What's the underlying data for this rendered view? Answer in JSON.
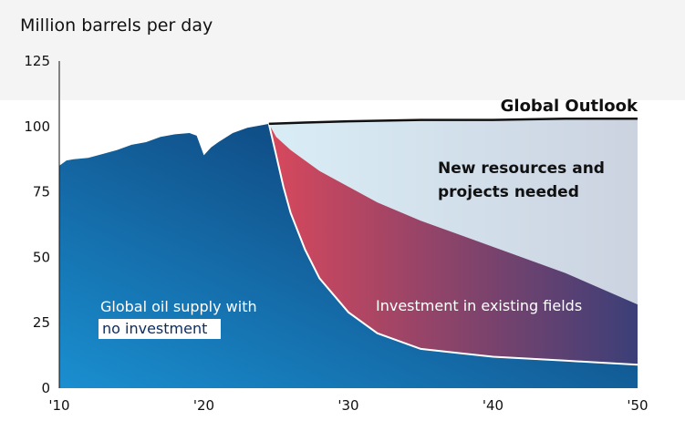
{
  "colors": {
    "band": "#f4f4f4",
    "outlook_line": "#111111",
    "base_dark": "#0b2e63",
    "base_light": "#1a8fd0",
    "existing_red": "#d8485c",
    "existing_purple": "#3b3f78",
    "new_light": "#d9edf6",
    "new_grey": "#ccd3e0",
    "label_white": "#ffffff",
    "label_dark": "#111111"
  },
  "chart_data": {
    "type": "area",
    "title": "",
    "ylabel": "Million barrels per day",
    "xlabel": "",
    "xlim": [
      2010,
      2050
    ],
    "ylim": [
      0,
      125
    ],
    "y_ticks": [
      0,
      25,
      50,
      75,
      100,
      125
    ],
    "x_ticks": [
      {
        "value": 2010,
        "label": "'10"
      },
      {
        "value": 2020,
        "label": "'20"
      },
      {
        "value": 2030,
        "label": "'30"
      },
      {
        "value": 2040,
        "label": "'40"
      },
      {
        "value": 2050,
        "label": "'50"
      }
    ],
    "series": [
      {
        "name": "Global Outlook",
        "x": [
          2024.5,
          2027,
          2030,
          2035,
          2040,
          2045,
          2050
        ],
        "values": [
          101,
          101.5,
          102,
          102.5,
          102.5,
          103,
          103
        ]
      },
      {
        "name": "Global oil supply with no investment",
        "x": [
          2010,
          2010.5,
          2011,
          2012,
          2013,
          2014,
          2015,
          2016,
          2017,
          2018,
          2019,
          2019.5,
          2020,
          2020.5,
          2021,
          2022,
          2023,
          2024,
          2024.5,
          2025,
          2025.5,
          2026,
          2027,
          2028,
          2030,
          2032,
          2035,
          2040,
          2045,
          2050
        ],
        "values": [
          85,
          87,
          87.5,
          88,
          89.5,
          91,
          93,
          94,
          96,
          97,
          97.5,
          96.5,
          89,
          92,
          94,
          97.5,
          99.5,
          100.5,
          101,
          89,
          77,
          67,
          53,
          42,
          29,
          21,
          15,
          12,
          10.5,
          9
        ]
      },
      {
        "name": "Investment in existing fields",
        "x": [
          2024.5,
          2025,
          2026,
          2027,
          2028,
          2030,
          2032,
          2035,
          2038,
          2040,
          2045,
          2050
        ],
        "values": [
          101,
          96,
          91,
          87,
          83,
          77,
          71,
          64,
          58,
          54,
          44,
          32
        ]
      }
    ],
    "annotations": [
      {
        "text": "Global Outlook",
        "anchor": "end-of-outlook-line"
      },
      {
        "text": "New resources and",
        "anchor": "upper-right-area"
      },
      {
        "text": "projects needed",
        "anchor": "upper-right-area"
      },
      {
        "text": "Investment in existing fields",
        "anchor": "middle-band"
      },
      {
        "text": "Global oil supply with",
        "anchor": "lower-left"
      },
      {
        "text": "no investment",
        "anchor": "lower-left-highlighted"
      }
    ]
  }
}
